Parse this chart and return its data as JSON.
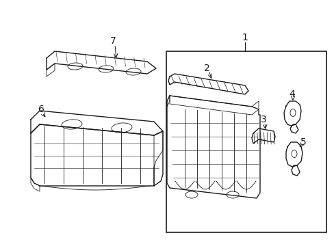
{
  "background_color": "#ffffff",
  "line_color": "#1a1a1a",
  "figure_width": 4.89,
  "figure_height": 3.6,
  "dpi": 100,
  "label_fontsize": 10
}
